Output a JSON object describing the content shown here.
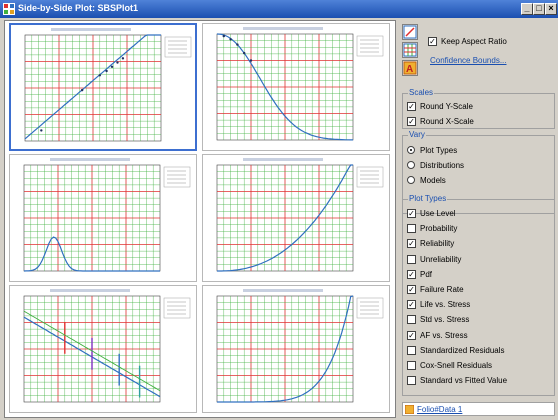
{
  "window": {
    "title": "Side-by-Side Plot: SBSPlot1",
    "minimize": "_",
    "maximize": "□",
    "close": "×"
  },
  "colors": {
    "titlebar": "#1b4fb0",
    "grid_major": "#e03030",
    "grid_minor": "#40b040",
    "curve": "#3070c0",
    "link": "#1a4fb0"
  },
  "toolbar": {
    "keep_aspect_ratio_label": "Keep Aspect Ratio",
    "keep_aspect_ratio_checked": true,
    "confidence_bounds_link": "Confidence Bounds..."
  },
  "scales": {
    "label": "Scales",
    "items": [
      {
        "label": "Round Y-Scale",
        "checked": true
      },
      {
        "label": "Round X-Scale",
        "checked": true
      }
    ]
  },
  "vary": {
    "label": "Vary",
    "items": [
      {
        "label": "Plot Types",
        "selected": true
      },
      {
        "label": "Distributions",
        "selected": false
      },
      {
        "label": "Models",
        "selected": false
      }
    ]
  },
  "plot_types": {
    "label": "Plot Types",
    "items": [
      {
        "label": "Use Level",
        "checked": true
      },
      {
        "label": "Probability",
        "checked": false
      },
      {
        "label": "Reliability",
        "checked": true
      },
      {
        "label": "Unreliability",
        "checked": false
      },
      {
        "label": "Pdf",
        "checked": true
      },
      {
        "label": "Failure Rate",
        "checked": true
      },
      {
        "label": "Life vs. Stress",
        "checked": true
      },
      {
        "label": "Std vs. Stress",
        "checked": false
      },
      {
        "label": "AF vs. Stress",
        "checked": true
      },
      {
        "label": "Standardized Residuals",
        "checked": false
      },
      {
        "label": "Cox-Snell Residuals",
        "checked": false
      },
      {
        "label": "Standard vs Fitted Value",
        "checked": false
      }
    ]
  },
  "folio": {
    "link": "Folio#Data 1",
    "icon": "folio-icon"
  },
  "plots": [
    {
      "name": "use-level",
      "curve_type": "probability",
      "selected": true
    },
    {
      "name": "reliability",
      "curve_type": "reliability",
      "selected": false
    },
    {
      "name": "pdf",
      "curve_type": "pdf",
      "selected": false
    },
    {
      "name": "failure-rate",
      "curve_type": "failure-rate",
      "selected": false
    },
    {
      "name": "life-vs-stress",
      "curve_type": "life-stress",
      "selected": false
    },
    {
      "name": "af-vs-stress",
      "curve_type": "af-stress",
      "selected": false
    }
  ]
}
